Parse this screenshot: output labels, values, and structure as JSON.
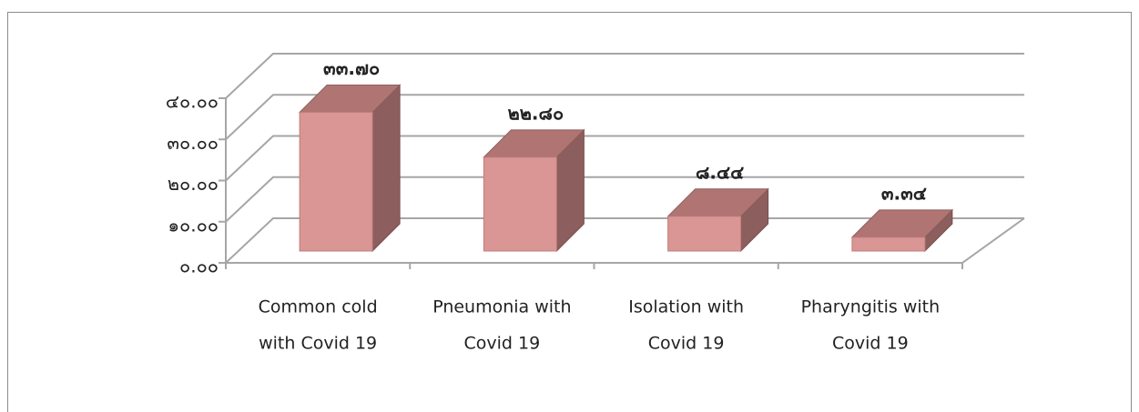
{
  "chart_data": {
    "type": "bar3d",
    "categories": [
      [
        "Common cold",
        "with Covid 19"
      ],
      [
        "Pneumonia with",
        "Covid 19"
      ],
      [
        "Isolation with",
        "Covid 19"
      ],
      [
        "Pharyngitis with",
        "Covid 19"
      ]
    ],
    "values": [
      33.7,
      22.8,
      8.44,
      3.34
    ],
    "value_labels": [
      "๓๓.๗๐",
      "๒๒.๘๐",
      "๘.๔๔",
      "๓.๓๔"
    ],
    "color": "#d99694",
    "ylim": [
      0,
      40
    ],
    "yticks": [
      {
        "value": 0,
        "label": "๐.๐๐"
      },
      {
        "value": 10,
        "label": "๑๐.๐๐"
      },
      {
        "value": 20,
        "label": "๒๐.๐๐"
      },
      {
        "value": 30,
        "label": "๓๐.๐๐"
      },
      {
        "value": 40,
        "label": "๔๐.๐๐"
      }
    ],
    "grid": true
  }
}
